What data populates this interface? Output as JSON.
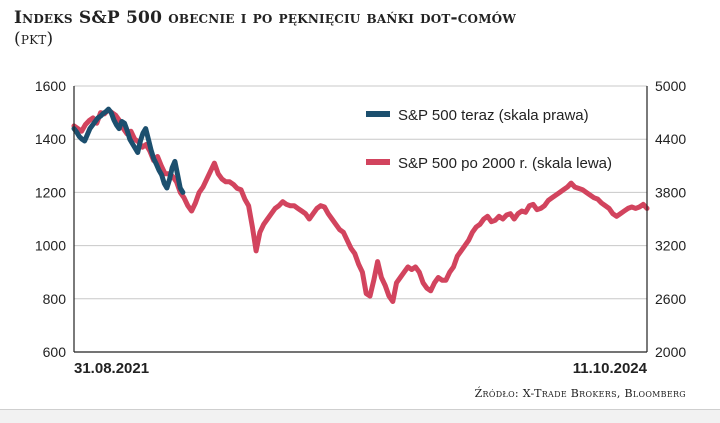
{
  "title": "Indeks S&P 500 obecnie i po pęknięciu bańki dot-comów",
  "subtitle": "(pkt)",
  "source": "Źródło: X-Trade Brokers, Bloomberg",
  "colors": {
    "now": "#1c4f6e",
    "dotcom": "#d2445e",
    "grid": "#c8c8c8",
    "axis": "#222222"
  },
  "chart_data": {
    "type": "line",
    "title": "Indeks S&P 500 obecnie i po pęknięciu bańki dot-comów",
    "x_start_label": "31.08.2021",
    "x_end_label": "11.10.2024",
    "y_left_ticks": [
      "600",
      "800",
      "1000",
      "1200",
      "1400",
      "1600"
    ],
    "y_left_range": [
      600,
      1600
    ],
    "y_right_ticks": [
      "2000",
      "2600",
      "3200",
      "3800",
      "4400",
      "5000"
    ],
    "y_right_range": [
      2000,
      5000
    ],
    "grid": true,
    "legend_position": "top-right",
    "series": [
      {
        "name": "S&P 500 teraz (skala prawa)",
        "axis": "right",
        "x_range": [
          0,
          0.19
        ],
        "values": [
          4520,
          4480,
          4430,
          4400,
          4380,
          4450,
          4520,
          4560,
          4600,
          4640,
          4660,
          4690,
          4710,
          4740,
          4700,
          4620,
          4560,
          4520,
          4600,
          4580,
          4500,
          4400,
          4350,
          4300,
          4250,
          4380,
          4470,
          4520,
          4400,
          4280,
          4180,
          4120,
          4050,
          4000,
          3900,
          3850,
          3950,
          4080,
          4150,
          4000,
          3850,
          3800
        ]
      },
      {
        "name": "S&P 500 po 2000 r. (skala lewa)",
        "axis": "left",
        "x_range": [
          0,
          1
        ],
        "values": [
          1450,
          1440,
          1430,
          1455,
          1470,
          1480,
          1460,
          1500,
          1495,
          1510,
          1500,
          1490,
          1470,
          1440,
          1420,
          1430,
          1400,
          1390,
          1370,
          1380,
          1355,
          1320,
          1335,
          1300,
          1270,
          1270,
          1260,
          1240,
          1200,
          1180,
          1150,
          1130,
          1160,
          1200,
          1220,
          1250,
          1280,
          1310,
          1270,
          1250,
          1240,
          1240,
          1230,
          1215,
          1210,
          1175,
          1150,
          1070,
          980,
          1050,
          1080,
          1100,
          1120,
          1140,
          1150,
          1165,
          1155,
          1150,
          1150,
          1140,
          1130,
          1120,
          1100,
          1120,
          1140,
          1150,
          1145,
          1120,
          1100,
          1080,
          1060,
          1050,
          1020,
          990,
          970,
          930,
          900,
          820,
          810,
          870,
          940,
          880,
          850,
          810,
          790,
          860,
          880,
          900,
          920,
          910,
          920,
          900,
          860,
          840,
          830,
          860,
          880,
          870,
          870,
          900,
          920,
          960,
          980,
          1000,
          1020,
          1050,
          1070,
          1080,
          1100,
          1110,
          1090,
          1095,
          1110,
          1100,
          1115,
          1120,
          1100,
          1120,
          1130,
          1125,
          1150,
          1155,
          1135,
          1140,
          1150,
          1170,
          1180,
          1190,
          1200,
          1210,
          1220,
          1235,
          1220,
          1215,
          1210,
          1200,
          1190,
          1180,
          1175,
          1160,
          1150,
          1140,
          1120,
          1110,
          1120,
          1130,
          1140,
          1145,
          1140,
          1145,
          1155,
          1140
        ]
      }
    ]
  }
}
